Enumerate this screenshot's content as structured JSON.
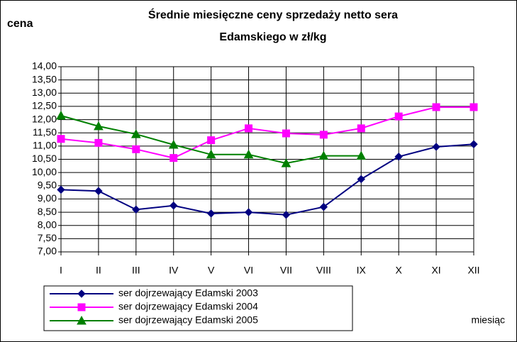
{
  "chart_data": {
    "type": "line",
    "title": [
      "Średnie miesięczne ceny sprzedaży netto sera",
      "Edamskiego w zł/kg"
    ],
    "y_label": "cena",
    "x_label": "miesiąc",
    "categories": [
      "I",
      "II",
      "III",
      "IV",
      "V",
      "VI",
      "VII",
      "VIII",
      "IX",
      "X",
      "XI",
      "XII"
    ],
    "series": [
      {
        "name": "ser dojrzewający Edamski 2003",
        "color": "#000080",
        "marker": "diamond",
        "values": [
          9.35,
          9.3,
          8.6,
          8.75,
          8.45,
          8.5,
          8.4,
          8.7,
          9.75,
          10.6,
          10.97,
          11.07
        ]
      },
      {
        "name": "ser dojrzewający Edamski 2004",
        "color": "#ff00ff",
        "marker": "square",
        "values": [
          11.27,
          11.12,
          10.88,
          10.55,
          11.22,
          11.67,
          11.48,
          11.43,
          11.67,
          12.12,
          12.47,
          12.47
        ]
      },
      {
        "name": "ser dojrzewający Edamski 2005",
        "color": "#008000",
        "marker": "triangle",
        "values": [
          12.15,
          11.75,
          11.45,
          11.05,
          10.68,
          10.68,
          10.35,
          10.63,
          10.63,
          null,
          null,
          null
        ]
      }
    ],
    "ylim": [
      7,
      14
    ],
    "yticks": [
      {
        "value": 7,
        "label": "7,00"
      },
      {
        "value": 7.5,
        "label": "7,50"
      },
      {
        "value": 8,
        "label": "8,00"
      },
      {
        "value": 8.5,
        "label": "8,50"
      },
      {
        "value": 9,
        "label": "9,00"
      },
      {
        "value": 9.5,
        "label": "9,50"
      },
      {
        "value": 10,
        "label": "10,00"
      },
      {
        "value": 10.5,
        "label": "10,50"
      },
      {
        "value": 11,
        "label": "11,00"
      },
      {
        "value": 11.5,
        "label": "11,50"
      },
      {
        "value": 12,
        "label": "12,00"
      },
      {
        "value": 12.5,
        "label": "12,50"
      },
      {
        "value": 13,
        "label": "13,00"
      },
      {
        "value": 13.5,
        "label": "13,50"
      },
      {
        "value": 14,
        "label": "14,00"
      }
    ],
    "grid": true
  }
}
